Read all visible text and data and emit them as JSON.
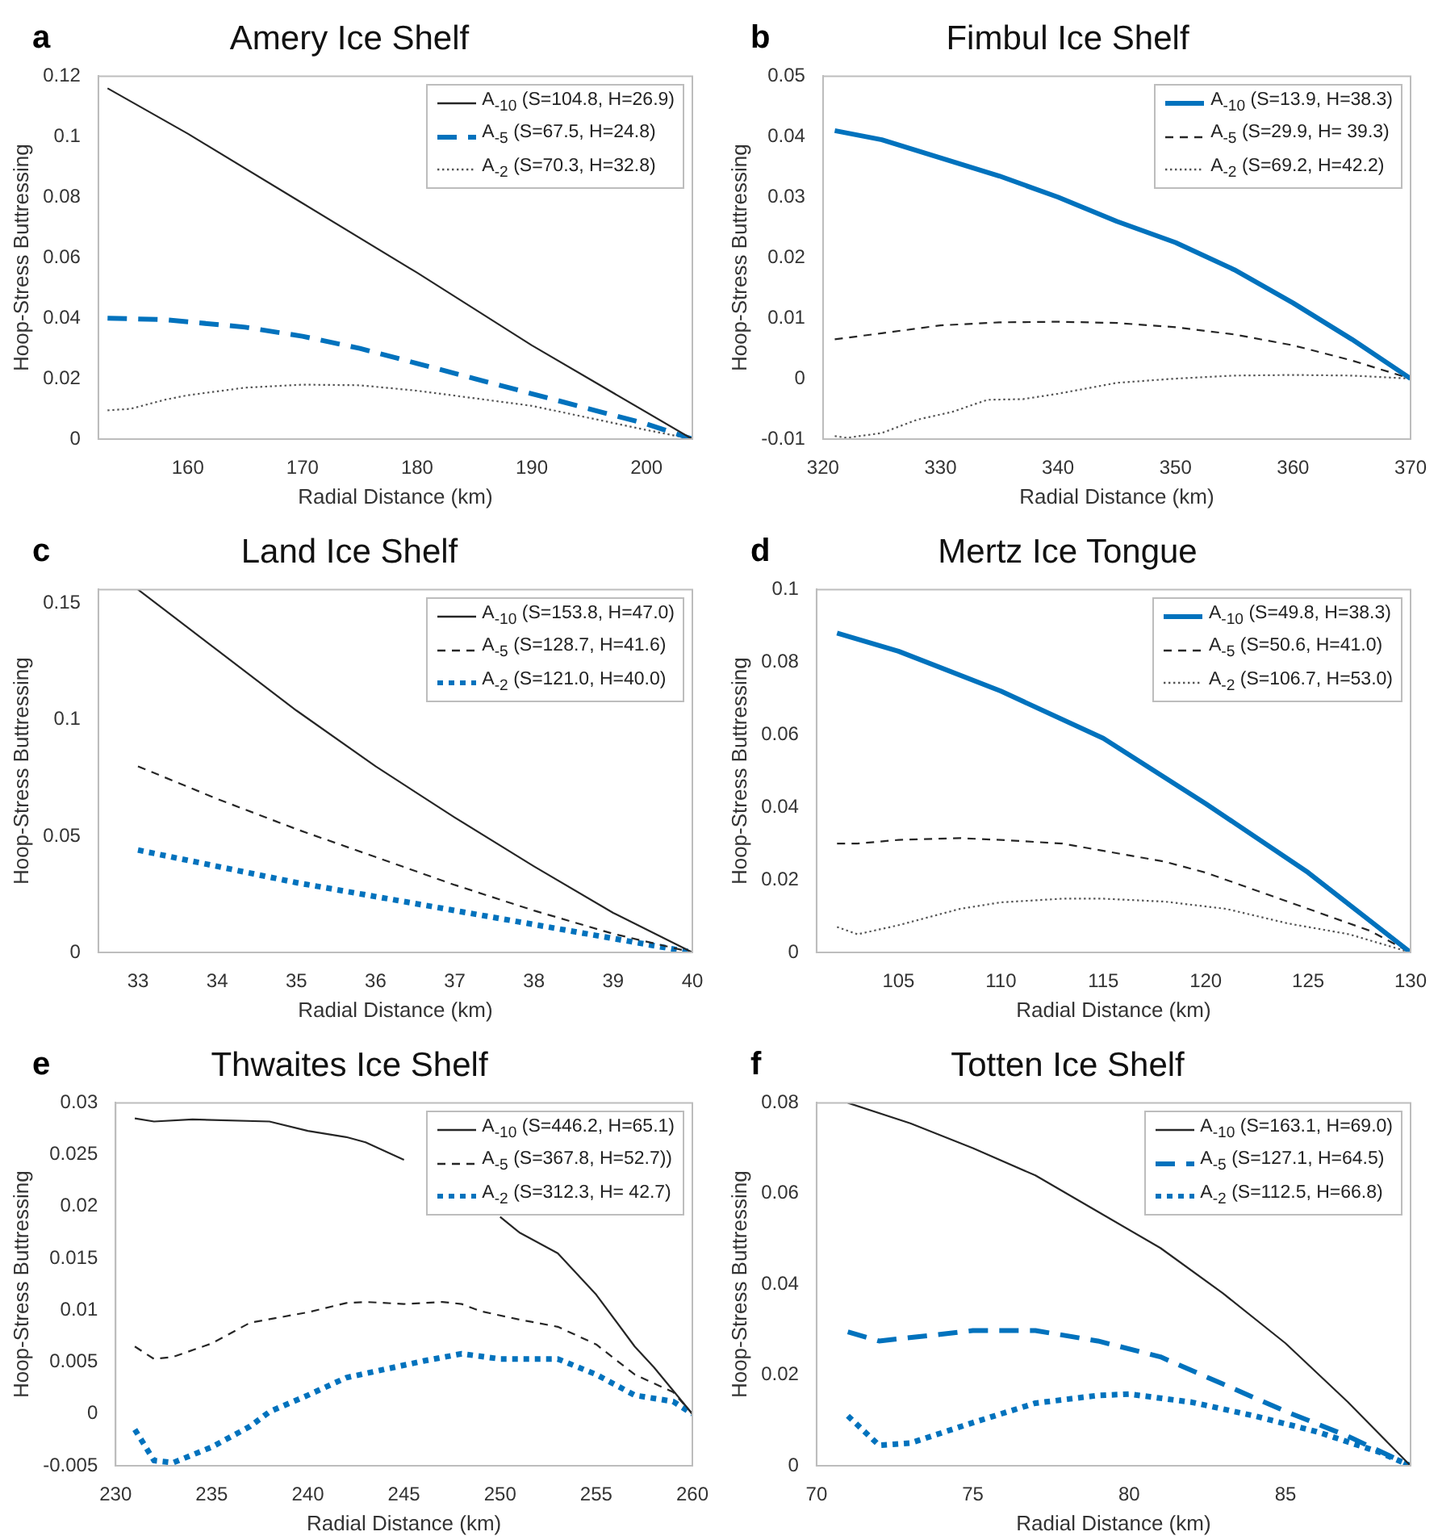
{
  "chart_data": [
    {
      "type": "line",
      "title": "Amery Ice Shelf",
      "annotations": [
        "a"
      ],
      "xlabel": "Radial Distance (km)",
      "ylabel": "Hoop-Stress Buttressing",
      "xlim": [
        152.2,
        204
      ],
      "xticks": [
        160,
        170,
        180,
        190,
        200
      ],
      "ylim": [
        0,
        0.12
      ],
      "yticks": [
        0,
        0.02,
        0.04,
        0.06,
        0.08,
        0.1,
        0.12
      ],
      "legend": "top right",
      "series": [
        {
          "name": "A$_{-10}$ (S=104.8, H=26.9)",
          "color": "#262626",
          "line_style": "solid",
          "x": [
            153,
            160,
            170,
            180,
            190,
            204
          ],
          "values": [
            0.116,
            0.101,
            0.078,
            0.055,
            0.031,
            0
          ]
        },
        {
          "name": "A$_{-5}$ (S=67.5, H=24.8)",
          "color": "#0072bd",
          "line_style": "dashed",
          "x": [
            153,
            158,
            165,
            170,
            175,
            180,
            185,
            190,
            195,
            200,
            204
          ],
          "values": [
            0.04,
            0.0395,
            0.037,
            0.034,
            0.03,
            0.025,
            0.02,
            0.015,
            0.01,
            0.005,
            0
          ]
        },
        {
          "name": "A$_{-2}$ (S=70.3, H=32.8)",
          "color": "#555555",
          "line_style": "dotted",
          "x": [
            153,
            155,
            158,
            160,
            165,
            170,
            175,
            180,
            185,
            190,
            195,
            200,
            204
          ],
          "values": [
            0.0095,
            0.01,
            0.013,
            0.0145,
            0.017,
            0.018,
            0.0178,
            0.016,
            0.0135,
            0.011,
            0.007,
            0.003,
            0
          ]
        }
      ]
    },
    {
      "type": "line",
      "title": "Fimbul Ice Shelf",
      "annotations": [
        "b"
      ],
      "xlabel": "Radial Distance (km)",
      "ylabel": "Hoop-Stress Buttressing",
      "xlim": [
        320,
        370
      ],
      "xticks": [
        320,
        330,
        340,
        350,
        360,
        370
      ],
      "ylim": [
        -0.01,
        0.05
      ],
      "yticks": [
        -0.01,
        0,
        0.01,
        0.02,
        0.03,
        0.04,
        0.05
      ],
      "legend": "top right",
      "series": [
        {
          "name": "A$_{-10}$ (S=13.9, H=38.3)",
          "color": "#0072bd",
          "line_style": "solid",
          "x": [
            321,
            325,
            330,
            335,
            340,
            345,
            350,
            355,
            360,
            365,
            370
          ],
          "values": [
            0.041,
            0.0395,
            0.0365,
            0.0335,
            0.03,
            0.026,
            0.0225,
            0.018,
            0.0125,
            0.0065,
            0
          ]
        },
        {
          "name": "A$_{-5}$ (S=29.9, H= 39.3)",
          "color": "#262626",
          "line_style": "dashed",
          "x": [
            321,
            325,
            330,
            335,
            340,
            345,
            350,
            355,
            360,
            365,
            370
          ],
          "values": [
            0.0065,
            0.0075,
            0.0088,
            0.0093,
            0.0094,
            0.0092,
            0.0085,
            0.0073,
            0.0055,
            0.003,
            0
          ]
        },
        {
          "name": "A$_{-2}$ (S=69.2, H=42.2)",
          "color": "#555555",
          "line_style": "dotted",
          "x": [
            321,
            322,
            325,
            328,
            331,
            334,
            337,
            340,
            345,
            350,
            355,
            360,
            365,
            370
          ],
          "values": [
            -0.0095,
            -0.0098,
            -0.009,
            -0.0068,
            -0.0055,
            -0.0035,
            -0.0034,
            -0.0025,
            -0.0007,
            0,
            0.0005,
            0.0006,
            0.0005,
            0
          ]
        }
      ]
    },
    {
      "type": "line",
      "title": "Land Ice Shelf",
      "annotations": [
        "c"
      ],
      "xlabel": "Radial Distance (km)",
      "ylabel": "Hoop-Stress Buttressing",
      "xlim": [
        32.5,
        40
      ],
      "xticks": [
        33,
        34,
        35,
        36,
        37,
        38,
        39,
        40
      ],
      "ylim": [
        0,
        0.156
      ],
      "yticks": [
        0,
        0.05,
        0.1,
        0.15
      ],
      "legend": "top right",
      "series": [
        {
          "name": "A$_{-10}$ (S=153.8, H=47.0)",
          "color": "#262626",
          "line_style": "solid",
          "x": [
            33,
            34,
            35,
            36,
            37,
            38,
            39,
            40
          ],
          "values": [
            0.156,
            0.13,
            0.104,
            0.08,
            0.058,
            0.037,
            0.017,
            0
          ]
        },
        {
          "name": "A$_{-5}$ (S=128.7, H=41.6)",
          "color": "#262626",
          "line_style": "dashed",
          "x": [
            33,
            34,
            35,
            36,
            37,
            38,
            39,
            40
          ],
          "values": [
            0.08,
            0.066,
            0.053,
            0.041,
            0.029,
            0.018,
            0.008,
            0
          ]
        },
        {
          "name": "A$_{-2}$ (S=121.0, H=40.0)",
          "color": "#0072bd",
          "line_style": "dotted",
          "x": [
            33,
            34,
            35,
            36,
            37,
            38,
            39,
            40
          ],
          "values": [
            0.044,
            0.037,
            0.03,
            0.024,
            0.018,
            0.012,
            0.006,
            0
          ]
        }
      ]
    },
    {
      "type": "line",
      "title": "Mertz Ice Tongue",
      "annotations": [
        "d"
      ],
      "xlabel": "Radial Distance (km)",
      "ylabel": "Hoop-Stress Buttressing",
      "xlim": [
        101,
        130
      ],
      "xticks": [
        105,
        110,
        115,
        120,
        125,
        130
      ],
      "ylim": [
        0,
        0.1
      ],
      "yticks": [
        0,
        0.02,
        0.04,
        0.06,
        0.08,
        0.1
      ],
      "legend": "top right",
      "series": [
        {
          "name": "A$_{-10}$ (S=49.8, H=38.3)",
          "color": "#0072bd",
          "line_style": "solid",
          "x": [
            102,
            105,
            110,
            115,
            120,
            125,
            130
          ],
          "values": [
            0.088,
            0.083,
            0.072,
            0.059,
            0.041,
            0.022,
            0
          ]
        },
        {
          "name": "A$_{-5}$ (S=50.6, H=41.0)",
          "color": "#262626",
          "line_style": "dashed",
          "x": [
            102,
            103,
            105,
            108,
            110,
            113,
            115,
            118,
            120,
            123,
            125,
            128,
            130
          ],
          "values": [
            0.03,
            0.03,
            0.031,
            0.0315,
            0.031,
            0.03,
            0.028,
            0.025,
            0.022,
            0.016,
            0.012,
            0.006,
            0
          ]
        },
        {
          "name": "A$_{-2}$ (S=106.7, H=53.0)",
          "color": "#555555",
          "line_style": "dotted",
          "x": [
            102,
            103,
            105,
            108,
            110,
            113,
            115,
            118,
            121,
            124,
            127,
            130
          ],
          "values": [
            0.007,
            0.005,
            0.0075,
            0.012,
            0.0138,
            0.0148,
            0.0148,
            0.014,
            0.012,
            0.008,
            0.005,
            0
          ]
        }
      ]
    },
    {
      "type": "line",
      "title": "Thwaites Ice Shelf",
      "annotations": [
        "e"
      ],
      "xlabel": "Radial Distance (km)",
      "ylabel": "Hoop-Stress Buttressing",
      "xlim": [
        230,
        260
      ],
      "xticks": [
        230,
        235,
        240,
        245,
        250,
        255,
        260
      ],
      "ylim": [
        -0.005,
        0.03
      ],
      "yticks": [
        -0.005,
        0,
        0.005,
        0.01,
        0.015,
        0.02,
        0.025,
        0.03
      ],
      "legend": "top right",
      "series": [
        {
          "name": "A$_{-10}$ (S=446.2, H=65.1)",
          "color": "#262626",
          "line_style": "solid",
          "x": [
            231,
            232,
            234,
            238,
            240,
            242,
            243,
            245,
            247,
            249,
            250,
            251,
            253,
            255,
            257,
            258,
            260
          ],
          "values": [
            0.0285,
            0.0282,
            0.0284,
            0.0282,
            0.0273,
            0.0267,
            0.0262,
            0.0245,
            null,
            null,
            0.019,
            0.0175,
            0.0155,
            0.0115,
            0.0065,
            0.0045,
            0
          ]
        },
        {
          "name": "A$_{-5}$ (S=367.8, H=52.7))",
          "color": "#262626",
          "line_style": "dashed",
          "x": [
            231,
            232,
            233,
            235,
            237,
            240,
            242,
            243,
            245,
            247,
            248,
            249,
            251,
            253,
            255,
            257,
            259,
            260
          ],
          "values": [
            0.0065,
            0.0053,
            0.0055,
            0.0068,
            0.0088,
            0.0098,
            0.0107,
            0.0108,
            0.0106,
            0.0108,
            0.0106,
            0.0099,
            0.0091,
            0.0084,
            0.0067,
            0.0038,
            0.0021,
            0
          ]
        },
        {
          "name": "A$_{-2}$ (S=312.3, H= 42.7)",
          "color": "#0072bd",
          "line_style": "dotted",
          "x": [
            231,
            232,
            233,
            235,
            237,
            238,
            240,
            242,
            244,
            246,
            248,
            250,
            252,
            253,
            255,
            257,
            259,
            260
          ],
          "values": [
            -0.0015,
            -0.0045,
            -0.0047,
            -0.0032,
            -0.0012,
            0.0002,
            0.0018,
            0.0035,
            0.0043,
            0.0051,
            0.0058,
            0.0053,
            0.0053,
            0.0053,
            0.0038,
            0.0018,
            0.0012,
            0
          ]
        }
      ]
    },
    {
      "type": "line",
      "title": "Totten Ice Shelf",
      "annotations": [
        "f"
      ],
      "xlabel": "Radial Distance (km)",
      "ylabel": "Hoop-Stress Buttressing",
      "xlim": [
        70,
        89
      ],
      "xticks": [
        70,
        75,
        80,
        85
      ],
      "ylim": [
        0,
        0.08
      ],
      "yticks": [
        0,
        0.02,
        0.04,
        0.06,
        0.08
      ],
      "legend": "top right",
      "series": [
        {
          "name": "A$_{-10}$ (S=163.1, H=69.0)",
          "color": "#262626",
          "line_style": "solid",
          "x": [
            71,
            73,
            75,
            77,
            79,
            81,
            83,
            85,
            87,
            89
          ],
          "values": [
            0.08,
            0.0755,
            0.07,
            0.064,
            0.056,
            0.048,
            0.038,
            0.027,
            0.014,
            0
          ]
        },
        {
          "name": "A$_{-5}$ (S=127.1, H=64.5)",
          "color": "#0072bd",
          "line_style": "dashed",
          "x": [
            71,
            72,
            74,
            75,
            77,
            79,
            81,
            83,
            85,
            87,
            89
          ],
          "values": [
            0.0295,
            0.0275,
            0.029,
            0.0298,
            0.0298,
            0.0275,
            0.024,
            0.018,
            0.012,
            0.0065,
            0
          ]
        },
        {
          "name": "A$_{-2}$ (S=112.5, H=66.8)",
          "color": "#0072bd",
          "line_style": "dotted",
          "x": [
            71,
            72,
            73,
            75,
            77,
            79,
            80,
            82,
            84,
            86,
            88,
            89
          ],
          "values": [
            0.011,
            0.0045,
            0.005,
            0.0095,
            0.0138,
            0.0155,
            0.0158,
            0.014,
            0.011,
            0.0075,
            0.003,
            0
          ]
        }
      ]
    }
  ]
}
